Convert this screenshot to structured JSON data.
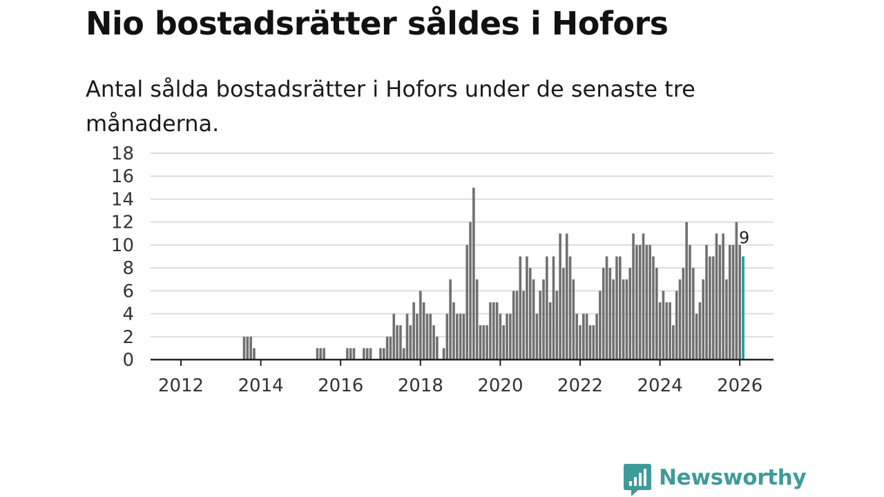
{
  "title": "Nio bostadsrätter såldes i Hofors",
  "subtitle": "Antal sålda bostadsrätter i Hofors under de senaste tre månaderna.",
  "brand": {
    "name": "Newsworthy",
    "icon": "newsworthy-logo-icon"
  },
  "colors": {
    "bar": "#707070",
    "highlight": "#1a9e96",
    "grid": "#dcdcdc",
    "axis": "#222222",
    "brand": "#3f9b9a"
  },
  "chart_data": {
    "type": "bar",
    "title": "Nio bostadsrätter såldes i Hofors",
    "xlabel": "",
    "ylabel": "",
    "x_start": "2011-03",
    "x_end": "2026-03",
    "ylim": [
      0,
      18
    ],
    "y_ticks": [
      "0",
      "2",
      "4",
      "6",
      "8",
      "10",
      "12",
      "14",
      "16",
      "18"
    ],
    "x_ticks": [
      "2012",
      "2014",
      "2016",
      "2018",
      "2020",
      "2022",
      "2024",
      "2026"
    ],
    "grid": true,
    "highlight_label": "9",
    "series": [
      {
        "name": "Sålda bostadsrätter",
        "points": [
          {
            "x": "2013-08",
            "y": 2
          },
          {
            "x": "2013-09",
            "y": 2
          },
          {
            "x": "2013-10",
            "y": 2
          },
          {
            "x": "2013-11",
            "y": 1
          },
          {
            "x": "2015-06",
            "y": 1
          },
          {
            "x": "2015-07",
            "y": 1
          },
          {
            "x": "2015-08",
            "y": 1
          },
          {
            "x": "2016-03",
            "y": 1
          },
          {
            "x": "2016-04",
            "y": 1
          },
          {
            "x": "2016-05",
            "y": 1
          },
          {
            "x": "2016-08",
            "y": 1
          },
          {
            "x": "2016-09",
            "y": 1
          },
          {
            "x": "2016-10",
            "y": 1
          },
          {
            "x": "2017-01",
            "y": 1
          },
          {
            "x": "2017-02",
            "y": 1
          },
          {
            "x": "2017-03",
            "y": 2
          },
          {
            "x": "2017-04",
            "y": 2
          },
          {
            "x": "2017-05",
            "y": 4
          },
          {
            "x": "2017-06",
            "y": 3
          },
          {
            "x": "2017-07",
            "y": 3
          },
          {
            "x": "2017-08",
            "y": 1
          },
          {
            "x": "2017-09",
            "y": 4
          },
          {
            "x": "2017-10",
            "y": 3
          },
          {
            "x": "2017-11",
            "y": 5
          },
          {
            "x": "2017-12",
            "y": 4
          },
          {
            "x": "2018-01",
            "y": 6
          },
          {
            "x": "2018-02",
            "y": 5
          },
          {
            "x": "2018-03",
            "y": 4
          },
          {
            "x": "2018-04",
            "y": 4
          },
          {
            "x": "2018-05",
            "y": 3
          },
          {
            "x": "2018-06",
            "y": 2
          },
          {
            "x": "2018-08",
            "y": 1
          },
          {
            "x": "2018-09",
            "y": 4
          },
          {
            "x": "2018-10",
            "y": 7
          },
          {
            "x": "2018-11",
            "y": 5
          },
          {
            "x": "2018-12",
            "y": 4
          },
          {
            "x": "2019-01",
            "y": 4
          },
          {
            "x": "2019-02",
            "y": 4
          },
          {
            "x": "2019-03",
            "y": 10
          },
          {
            "x": "2019-04",
            "y": 12
          },
          {
            "x": "2019-05",
            "y": 15
          },
          {
            "x": "2019-06",
            "y": 7
          },
          {
            "x": "2019-07",
            "y": 3
          },
          {
            "x": "2019-08",
            "y": 3
          },
          {
            "x": "2019-09",
            "y": 3
          },
          {
            "x": "2019-10",
            "y": 5
          },
          {
            "x": "2019-11",
            "y": 5
          },
          {
            "x": "2019-12",
            "y": 5
          },
          {
            "x": "2020-01",
            "y": 4
          },
          {
            "x": "2020-02",
            "y": 3
          },
          {
            "x": "2020-03",
            "y": 4
          },
          {
            "x": "2020-04",
            "y": 4
          },
          {
            "x": "2020-05",
            "y": 6
          },
          {
            "x": "2020-06",
            "y": 6
          },
          {
            "x": "2020-07",
            "y": 9
          },
          {
            "x": "2020-08",
            "y": 6
          },
          {
            "x": "2020-09",
            "y": 9
          },
          {
            "x": "2020-10",
            "y": 8
          },
          {
            "x": "2020-11",
            "y": 7
          },
          {
            "x": "2020-12",
            "y": 4
          },
          {
            "x": "2021-01",
            "y": 6
          },
          {
            "x": "2021-02",
            "y": 7
          },
          {
            "x": "2021-03",
            "y": 9
          },
          {
            "x": "2021-04",
            "y": 5
          },
          {
            "x": "2021-05",
            "y": 9
          },
          {
            "x": "2021-06",
            "y": 6
          },
          {
            "x": "2021-07",
            "y": 11
          },
          {
            "x": "2021-08",
            "y": 8
          },
          {
            "x": "2021-09",
            "y": 11
          },
          {
            "x": "2021-10",
            "y": 9
          },
          {
            "x": "2021-11",
            "y": 7
          },
          {
            "x": "2021-12",
            "y": 4
          },
          {
            "x": "2022-01",
            "y": 3
          },
          {
            "x": "2022-02",
            "y": 4
          },
          {
            "x": "2022-03",
            "y": 4
          },
          {
            "x": "2022-04",
            "y": 3
          },
          {
            "x": "2022-05",
            "y": 3
          },
          {
            "x": "2022-06",
            "y": 4
          },
          {
            "x": "2022-07",
            "y": 6
          },
          {
            "x": "2022-08",
            "y": 8
          },
          {
            "x": "2022-09",
            "y": 9
          },
          {
            "x": "2022-10",
            "y": 8
          },
          {
            "x": "2022-11",
            "y": 7
          },
          {
            "x": "2022-12",
            "y": 9
          },
          {
            "x": "2023-01",
            "y": 9
          },
          {
            "x": "2023-02",
            "y": 7
          },
          {
            "x": "2023-03",
            "y": 7
          },
          {
            "x": "2023-04",
            "y": 8
          },
          {
            "x": "2023-05",
            "y": 11
          },
          {
            "x": "2023-06",
            "y": 10
          },
          {
            "x": "2023-07",
            "y": 10
          },
          {
            "x": "2023-08",
            "y": 11
          },
          {
            "x": "2023-09",
            "y": 10
          },
          {
            "x": "2023-10",
            "y": 10
          },
          {
            "x": "2023-11",
            "y": 9
          },
          {
            "x": "2023-12",
            "y": 8
          },
          {
            "x": "2024-01",
            "y": 5
          },
          {
            "x": "2024-02",
            "y": 6
          },
          {
            "x": "2024-03",
            "y": 5
          },
          {
            "x": "2024-04",
            "y": 5
          },
          {
            "x": "2024-05",
            "y": 3
          },
          {
            "x": "2024-06",
            "y": 6
          },
          {
            "x": "2024-07",
            "y": 7
          },
          {
            "x": "2024-08",
            "y": 8
          },
          {
            "x": "2024-09",
            "y": 12
          },
          {
            "x": "2024-10",
            "y": 10
          },
          {
            "x": "2024-11",
            "y": 8
          },
          {
            "x": "2024-12",
            "y": 4
          },
          {
            "x": "2025-01",
            "y": 5
          },
          {
            "x": "2025-02",
            "y": 7
          },
          {
            "x": "2025-03",
            "y": 10
          },
          {
            "x": "2025-04",
            "y": 9
          },
          {
            "x": "2025-05",
            "y": 9
          },
          {
            "x": "2025-06",
            "y": 11
          },
          {
            "x": "2025-07",
            "y": 10
          },
          {
            "x": "2025-08",
            "y": 11
          },
          {
            "x": "2025-09",
            "y": 7
          },
          {
            "x": "2025-10",
            "y": 10
          },
          {
            "x": "2025-11",
            "y": 10
          },
          {
            "x": "2025-12",
            "y": 12
          },
          {
            "x": "2026-01",
            "y": 10
          },
          {
            "x": "2026-02",
            "y": 9
          }
        ]
      }
    ]
  }
}
